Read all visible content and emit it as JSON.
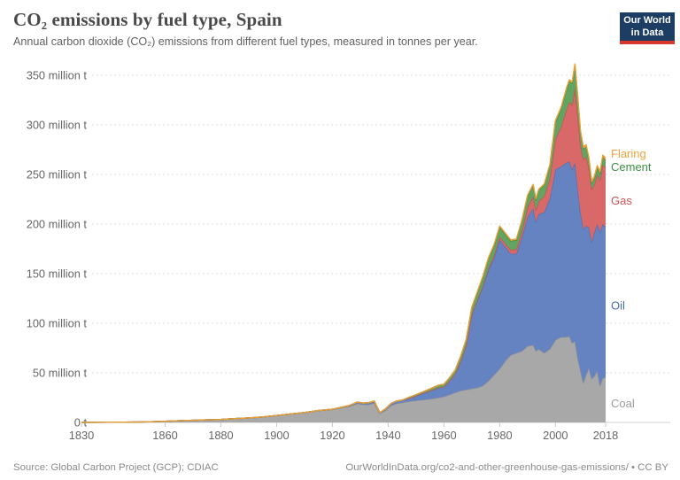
{
  "header": {
    "title": "CO₂ emissions by fuel type, Spain",
    "subtitle": "Annual carbon dioxide (CO₂) emissions from different fuel types, measured in tonnes per year.",
    "logo": {
      "line1": "Our World",
      "line2": "in Data",
      "bg_color": "#1d3d63",
      "stripe_color": "#d6382c"
    }
  },
  "footer": {
    "source": "Source: Global Carbon Project (GCP); CDIAC",
    "license": "OurWorldInData.org/co2-and-other-greenhouse-gas-emissions/ • CC BY"
  },
  "chart_data": {
    "type": "area",
    "stacked": true,
    "unit": "million tonnes CO₂ per year",
    "grid": true,
    "legend_position": "right",
    "xlim": [
      1830,
      2018
    ],
    "ylim": [
      0,
      350
    ],
    "x_ticks": [
      1830,
      1860,
      1880,
      1900,
      1920,
      1940,
      1960,
      1980,
      2000,
      2018
    ],
    "y_ticks": [
      {
        "v": 0,
        "label": "0 t"
      },
      {
        "v": 50,
        "label": "50 million t"
      },
      {
        "v": 100,
        "label": "100 million t"
      },
      {
        "v": 150,
        "label": "150 million t"
      },
      {
        "v": 200,
        "label": "200 million t"
      },
      {
        "v": 250,
        "label": "250 million t"
      },
      {
        "v": 300,
        "label": "300 million t"
      },
      {
        "v": 350,
        "label": "350 million t"
      }
    ],
    "years": [
      1830,
      1840,
      1850,
      1855,
      1860,
      1865,
      1870,
      1875,
      1880,
      1885,
      1890,
      1895,
      1900,
      1905,
      1910,
      1915,
      1920,
      1923,
      1926,
      1929,
      1931,
      1933,
      1935,
      1937,
      1939,
      1941,
      1943,
      1945,
      1947,
      1950,
      1953,
      1956,
      1958,
      1960,
      1962,
      1964,
      1966,
      1968,
      1970,
      1972,
      1974,
      1976,
      1978,
      1980,
      1982,
      1984,
      1986,
      1988,
      1990,
      1992,
      1993,
      1994,
      1996,
      1998,
      2000,
      2002,
      2004,
      2005,
      2006,
      2007,
      2008,
      2009,
      2010,
      2011,
      2012,
      2013,
      2014,
      2015,
      2016,
      2017,
      2018
    ],
    "series": [
      {
        "name": "Coal",
        "fill": "#a8a8a8",
        "stroke": "#949494",
        "label_color": "#9b9b9b",
        "values": [
          0.05,
          0.15,
          0.4,
          0.7,
          1.2,
          1.7,
          2.2,
          2.6,
          3,
          3.8,
          4.5,
          5.5,
          7,
          8.5,
          10,
          12,
          13,
          14.5,
          16,
          19,
          18,
          18,
          19.5,
          9,
          12,
          17,
          19,
          20,
          21,
          22,
          23,
          24,
          25,
          26,
          28,
          30,
          32,
          33,
          34,
          35,
          37,
          42,
          48,
          54,
          62,
          68,
          70,
          72,
          77,
          78,
          72,
          74,
          70,
          74,
          83,
          86,
          86,
          87,
          80,
          82,
          65,
          52,
          40,
          48,
          55,
          44,
          47,
          52,
          37,
          45,
          45
        ]
      },
      {
        "name": "Oil",
        "fill": "#6583c1",
        "stroke": "#5271b5",
        "label_color": "#466cb0",
        "values": [
          0,
          0,
          0,
          0,
          0,
          0,
          0,
          0,
          0,
          0,
          0,
          0,
          0,
          0,
          0,
          0,
          0.3,
          0.6,
          1,
          1.5,
          1.5,
          1.8,
          2,
          1,
          1.5,
          2,
          2.5,
          2.5,
          3,
          5,
          7,
          9,
          10,
          10,
          14,
          19,
          30,
          45,
          75,
          88,
          100,
          112,
          118,
          130,
          115,
          102,
          100,
          115,
          130,
          138,
          130,
          136,
          142,
          152,
          172,
          172,
          176,
          176,
          175,
          180,
          170,
          160,
          155,
          150,
          142,
          138,
          145,
          148,
          155,
          155,
          152
        ]
      },
      {
        "name": "Gas",
        "fill": "#d96868",
        "stroke": "#c75252",
        "label_color": "#d15353",
        "values": [
          0,
          0,
          0,
          0,
          0,
          0,
          0,
          0,
          0,
          0,
          0,
          0,
          0,
          0,
          0,
          0,
          0,
          0,
          0,
          0,
          0,
          0,
          0,
          0,
          0,
          0,
          0,
          0,
          0,
          0,
          0,
          0,
          0,
          0,
          0,
          0,
          0,
          0.1,
          0.3,
          0.8,
          1.2,
          1.8,
          2.5,
          3,
          3.5,
          4,
          4.5,
          6,
          10,
          12,
          12,
          13,
          16,
          20,
          31,
          40,
          54,
          60,
          65,
          76,
          75,
          68,
          70,
          70,
          60,
          53,
          48,
          50,
          52,
          60,
          60
        ]
      },
      {
        "name": "Cement",
        "fill": "#62a563",
        "stroke": "#3f8e46",
        "label_color": "#3d8e44",
        "values": [
          0,
          0,
          0,
          0,
          0,
          0,
          0,
          0,
          0,
          0,
          0,
          0,
          0,
          0,
          0,
          0,
          0,
          0,
          0,
          0,
          0,
          0,
          0,
          0,
          0,
          0,
          0,
          0,
          0.8,
          1,
          1.5,
          2,
          2.5,
          2.5,
          3,
          3.5,
          4.5,
          5.5,
          6.5,
          7.5,
          8.5,
          9.5,
          10,
          10,
          9.5,
          9,
          9.5,
          10.5,
          11,
          11,
          10.5,
          11,
          11.5,
          13,
          17,
          18,
          20,
          21,
          22,
          22,
          17,
          12,
          11,
          10,
          8,
          6.5,
          6.5,
          7,
          7,
          7.5,
          7.5
        ]
      },
      {
        "name": "Flaring",
        "fill": "#f2ab4a",
        "stroke": "#ea9e38",
        "label_color": "#f0a23e",
        "values": [
          0,
          0,
          0,
          0,
          0,
          0,
          0,
          0,
          0,
          0,
          0,
          0,
          0,
          0,
          0,
          0,
          0,
          0,
          0,
          0,
          0,
          0,
          0,
          0,
          0,
          0,
          0,
          0,
          0,
          0,
          0,
          0,
          0,
          0,
          0,
          0.1,
          0.2,
          0.3,
          0.5,
          0.8,
          1,
          1,
          1,
          1,
          1,
          1,
          1,
          1,
          1,
          1,
          1,
          1,
          1,
          1.2,
          1.5,
          1.5,
          1.5,
          1.5,
          1.5,
          1.5,
          1.5,
          1.5,
          2,
          2,
          2,
          2,
          2,
          2,
          2,
          2,
          2
        ]
      }
    ],
    "style": {
      "grid_color": "#dcdcdc",
      "axis_color": "#d2d2d2",
      "tick_color": "#c8c8c8",
      "tick_label_color": "#666666"
    }
  }
}
